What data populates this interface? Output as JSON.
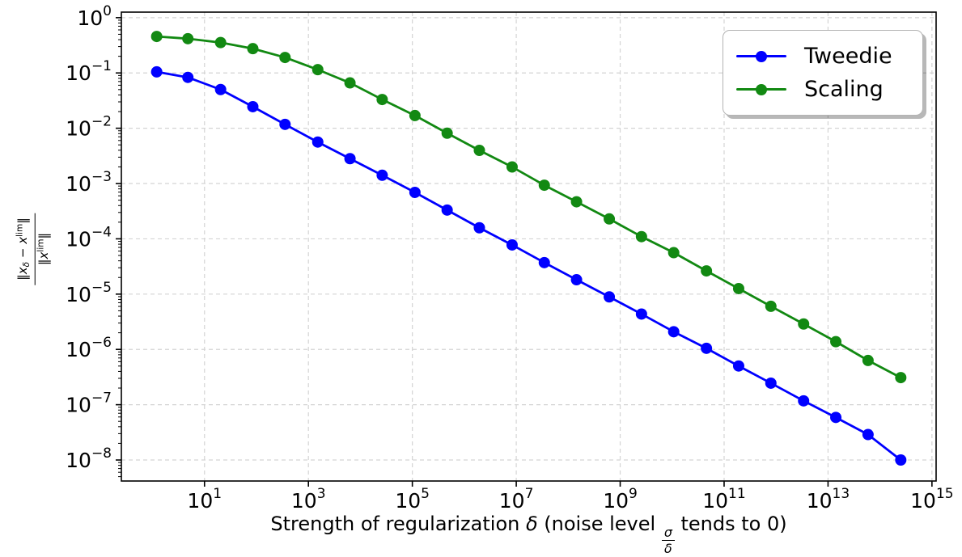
{
  "chart_data": {
    "type": "line",
    "title": "",
    "x_scale": "log",
    "y_scale": "log",
    "grid": true,
    "legend_position": "upper right",
    "xlabel": "Strength of regularization δ (noise level σ/δ tends to 0)",
    "ylabel": "‖x_δ − x^lim‖ / ‖x^lim‖",
    "x_tick_exponents": [
      1,
      3,
      5,
      7,
      9,
      11,
      13,
      15
    ],
    "y_tick_exponents": [
      0,
      -1,
      -2,
      -3,
      -4,
      -5,
      -6,
      -7,
      -8
    ],
    "xlim_log": [
      -0.6,
      15.08
    ],
    "ylim_log": [
      -8.38,
      0.1
    ],
    "log10_x": [
      0.08,
      0.68,
      1.31,
      1.93,
      2.55,
      3.18,
      3.8,
      4.42,
      5.05,
      5.67,
      6.29,
      6.92,
      7.54,
      8.16,
      8.79,
      9.41,
      10.03,
      10.66,
      11.28,
      11.9,
      12.53,
      13.15,
      13.77,
      14.4
    ],
    "series": [
      {
        "name": "Tweedie",
        "color": "#0000ff",
        "log10_y": [
          -0.98,
          -1.08,
          -1.3,
          -1.61,
          -1.93,
          -2.25,
          -2.55,
          -2.85,
          -3.16,
          -3.48,
          -3.8,
          -4.11,
          -4.43,
          -4.74,
          -5.05,
          -5.36,
          -5.68,
          -5.98,
          -6.3,
          -6.61,
          -6.93,
          -7.23,
          -7.54,
          -8.0
        ]
      },
      {
        "name": "Scaling",
        "color": "#128912",
        "log10_y": [
          -0.34,
          -0.38,
          -0.45,
          -0.56,
          -0.72,
          -0.94,
          -1.18,
          -1.48,
          -1.77,
          -2.09,
          -2.4,
          -2.7,
          -3.03,
          -3.33,
          -3.64,
          -3.96,
          -4.25,
          -4.58,
          -4.9,
          -5.22,
          -5.54,
          -5.86,
          -6.2,
          -6.51
        ]
      }
    ],
    "xlabel_parts": {
      "pre": "Strength of regularization ",
      "delta": "δ",
      "mid": " (noise level ",
      "frac_num": "σ",
      "frac_den": "δ",
      "post": " tends to 0)"
    },
    "ylabel_parts": {
      "num_bar1": "‖",
      "num_x1": "x",
      "num_sub": "δ",
      "num_minus": " − ",
      "num_x2": "x",
      "num_sup": "lim",
      "num_bar2": "‖",
      "den_bar1": "‖",
      "den_x": "x",
      "den_sup": "lim",
      "den_bar2": "‖"
    }
  }
}
